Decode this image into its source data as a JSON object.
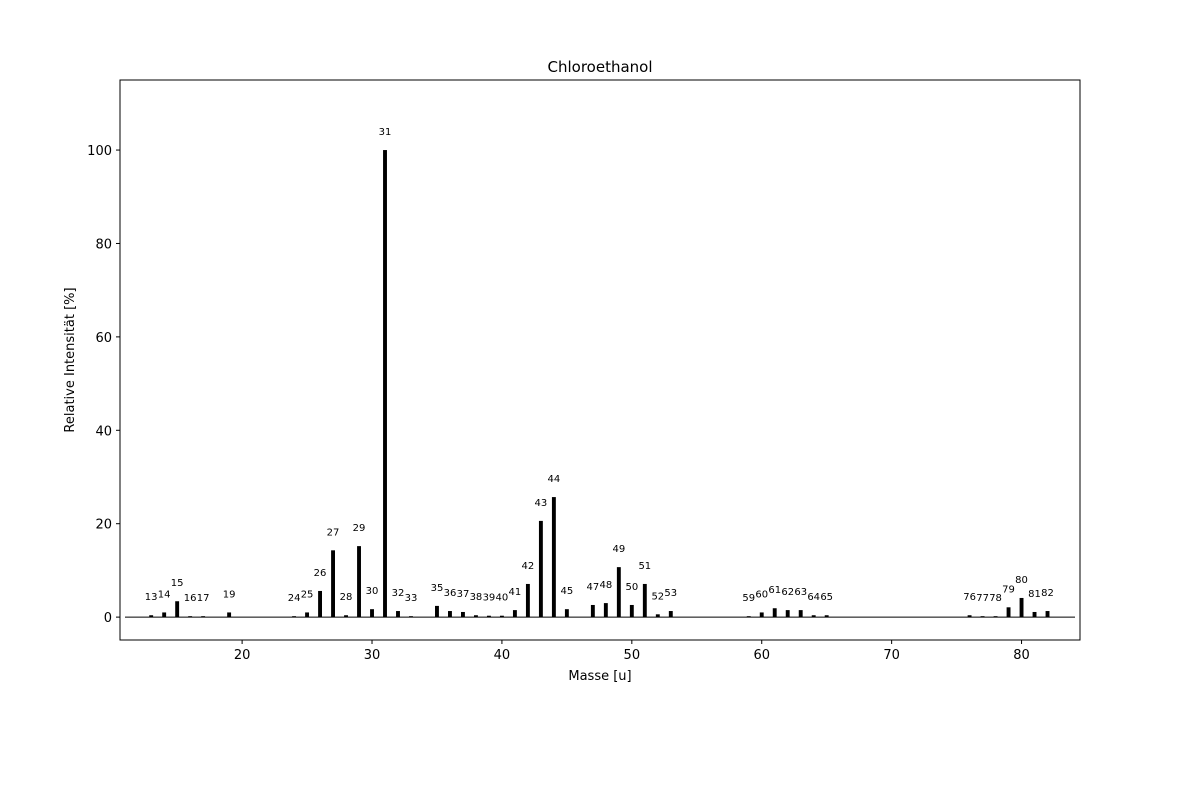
{
  "chart_data": {
    "type": "bar",
    "title": "Chloroethanol",
    "x_label": "Masse [u]",
    "y_label": "Relative Intensität [%]",
    "x": [
      13,
      14,
      15,
      16,
      17,
      19,
      24,
      25,
      26,
      27,
      28,
      29,
      30,
      31,
      32,
      33,
      35,
      36,
      37,
      38,
      39,
      40,
      41,
      42,
      43,
      44,
      45,
      47,
      48,
      49,
      50,
      51,
      52,
      53,
      59,
      60,
      61,
      62,
      63,
      64,
      65,
      76,
      77,
      78,
      79,
      80,
      81,
      82
    ],
    "values": [
      0.4,
      1.0,
      3.4,
      0.2,
      0.2,
      1.0,
      0.2,
      1.0,
      5.6,
      14.3,
      0.4,
      15.2,
      1.7,
      100,
      1.3,
      0.2,
      2.4,
      1.3,
      1.1,
      0.4,
      0.3,
      0.3,
      1.5,
      7.1,
      20.6,
      25.7,
      1.7,
      2.6,
      3.0,
      10.7,
      2.6,
      7.1,
      0.6,
      1.3,
      0.2,
      1.0,
      1.9,
      1.5,
      1.5,
      0.4,
      0.4,
      0.4,
      0.2,
      0.2,
      2.1,
      4.1,
      1.1,
      1.3
    ],
    "color": "#000000",
    "xlim": [
      10.6,
      84.5
    ],
    "ylim": [
      -4.9,
      115
    ],
    "xticks": [
      20,
      30,
      40,
      50,
      60,
      70,
      80
    ],
    "yticks": [
      0,
      20,
      40,
      60,
      80,
      100
    ]
  }
}
